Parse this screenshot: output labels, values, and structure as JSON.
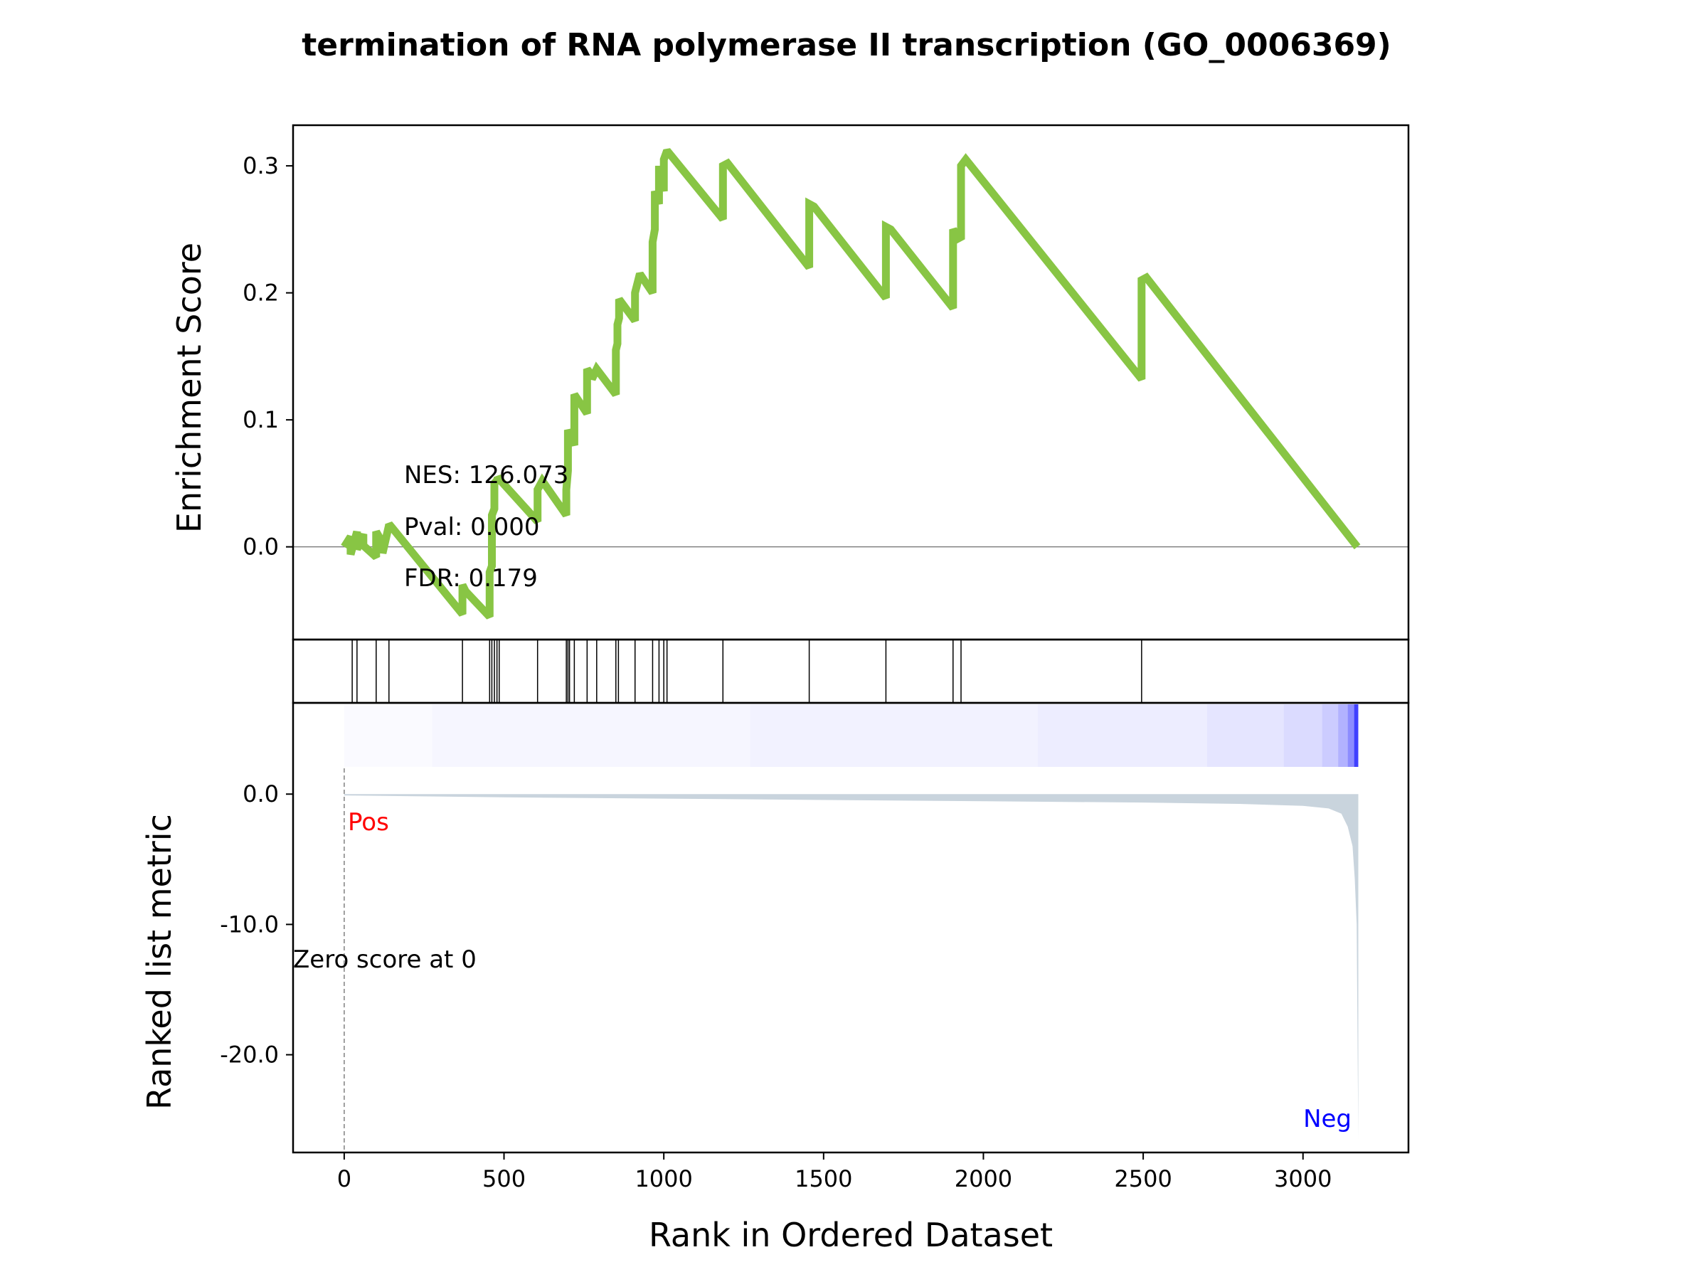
{
  "chart_data": {
    "type": "line",
    "title": "termination of RNA polymerase II transcription (GO_0006369)",
    "xlabel": "Rank in Ordered Dataset",
    "xlim": [
      -160,
      3330
    ],
    "xticks": [
      0,
      500,
      1000,
      1500,
      2000,
      2500,
      3000
    ],
    "xtick_labels": [
      "0",
      "500",
      "1000",
      "1500",
      "2000",
      "2500",
      "3000"
    ],
    "colors": {
      "es_line": "#88c544",
      "metric_fill": "#c9d4dd",
      "pos_label": "#ff0000",
      "neg_label": "#0000ff",
      "axis": "#000000",
      "zero_line": "#808080"
    },
    "enrichment_panel": {
      "ylabel": "Enrichment Score",
      "ylim": [
        -0.073,
        0.332
      ],
      "yticks": [
        0.0,
        0.1,
        0.2,
        0.3
      ],
      "ytick_labels": [
        "0.0",
        "0.1",
        "0.2",
        "0.3"
      ],
      "annotations": {
        "nes": "NES: 126.073",
        "pval": "Pval: 0.000",
        "fdr": "FDR: 0.179"
      },
      "series": [
        {
          "name": "Enrichment Score",
          "x": [
            0,
            20,
            20,
            40,
            40,
            60,
            60,
            100,
            100,
            120,
            120,
            140,
            140,
            150,
            370,
            370,
            380,
            455,
            455,
            462,
            462,
            470,
            470,
            480,
            480,
            490,
            605,
            605,
            620,
            695,
            695,
            700,
            700,
            720,
            720,
            760,
            760,
            775,
            775,
            790,
            850,
            850,
            855,
            855,
            860,
            860,
            910,
            910,
            925,
            965,
            965,
            972,
            972,
            985,
            985,
            1000,
            1000,
            1010,
            1185,
            1185,
            1200,
            1455,
            1455,
            1470,
            1695,
            1695,
            1710,
            1905,
            1905,
            1915,
            1915,
            1930,
            1930,
            1945,
            2495,
            2495,
            2510,
            3170
          ],
          "y": [
            0,
            0.008,
            -0.006,
            0.012,
            -0.002,
            0.01,
            0.001,
            -0.008,
            0.012,
            0.003,
            -0.005,
            0.017,
            0.018,
            0.015,
            -0.053,
            -0.03,
            -0.035,
            -0.055,
            -0.02,
            -0.015,
            0.025,
            0.03,
            0.05,
            0.053,
            0.055,
            0.052,
            0.02,
            0.045,
            0.052,
            0.025,
            0.045,
            0.06,
            0.092,
            0.08,
            0.12,
            0.105,
            0.14,
            0.135,
            0.132,
            0.14,
            0.12,
            0.155,
            0.16,
            0.175,
            0.18,
            0.195,
            0.178,
            0.2,
            0.215,
            0.2,
            0.24,
            0.25,
            0.28,
            0.27,
            0.3,
            0.28,
            0.305,
            0.312,
            0.258,
            0.3,
            0.302,
            0.22,
            0.27,
            0.268,
            0.196,
            0.252,
            0.25,
            0.188,
            0.25,
            0.246,
            0.242,
            0.244,
            0.3,
            0.305,
            0.132,
            0.21,
            0.212,
            0.0
          ]
        }
      ]
    },
    "hits_panel": {
      "hit_ranks": [
        25,
        40,
        100,
        140,
        370,
        455,
        462,
        470,
        478,
        485,
        605,
        695,
        700,
        705,
        720,
        760,
        790,
        850,
        858,
        910,
        965,
        985,
        1000,
        1010,
        1185,
        1455,
        1695,
        1905,
        1930,
        2495
      ]
    },
    "ranked_metric_panel": {
      "ylabel": "Ranked list metric",
      "ylim": [
        -27.5,
        7.0
      ],
      "yticks": [
        0.0,
        -10.0,
        -20.0
      ],
      "ytick_labels": [
        "0.0",
        "-10.0",
        "-20.0"
      ],
      "pos_label": "Pos",
      "neg_label": "Neg",
      "zero_score_text": "Zero score at 0",
      "zero_score_rank": 0,
      "metric_curve": {
        "x": [
          0,
          500,
          1000,
          1500,
          2000,
          2500,
          2800,
          3000,
          3080,
          3120,
          3140,
          3155,
          3162,
          3168,
          3173
        ],
        "y": [
          -0.1,
          -0.25,
          -0.35,
          -0.45,
          -0.55,
          -0.65,
          -0.75,
          -0.9,
          -1.1,
          -1.5,
          -2.5,
          -4.0,
          -6.5,
          -10.0,
          -26.5
        ]
      },
      "heat_bands": [
        {
          "x0": 0,
          "x1": 275,
          "alpha": 0.02
        },
        {
          "x0": 275,
          "x1": 1270,
          "alpha": 0.035
        },
        {
          "x0": 1270,
          "x1": 2170,
          "alpha": 0.05
        },
        {
          "x0": 2170,
          "x1": 2700,
          "alpha": 0.07
        },
        {
          "x0": 2700,
          "x1": 2940,
          "alpha": 0.1
        },
        {
          "x0": 2940,
          "x1": 3060,
          "alpha": 0.14
        },
        {
          "x0": 3060,
          "x1": 3110,
          "alpha": 0.2
        },
        {
          "x0": 3110,
          "x1": 3140,
          "alpha": 0.3
        },
        {
          "x0": 3140,
          "x1": 3160,
          "alpha": 0.45
        },
        {
          "x0": 3160,
          "x1": 3173,
          "alpha": 0.75
        }
      ]
    }
  }
}
